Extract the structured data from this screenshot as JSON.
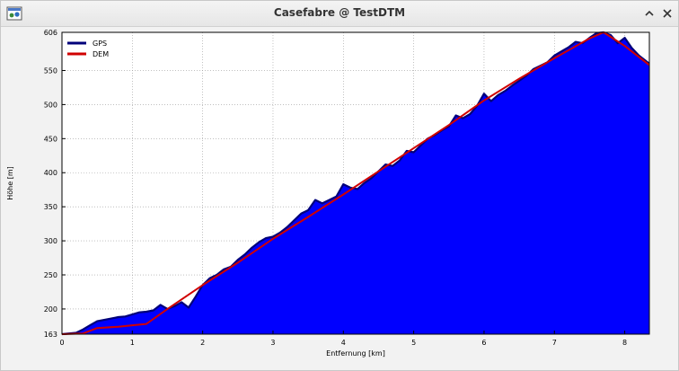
{
  "window": {
    "title": "Casefabre @ TestDTM"
  },
  "colors": {
    "gps_fill": "#0000ff",
    "gps_line": "#00007a",
    "dem_line": "#d00000",
    "grid": "#9a9a9a"
  },
  "chart_data": {
    "type": "area",
    "xlabel": "Entfernung [km]",
    "ylabel": "Höhe [m]",
    "xlim": [
      0,
      8.35
    ],
    "ylim": [
      163,
      606
    ],
    "xticks": [
      "0",
      "1",
      "2",
      "3",
      "4",
      "5",
      "6",
      "7",
      "8"
    ],
    "yticks": [
      "163",
      "200",
      "250",
      "300",
      "350",
      "400",
      "450",
      "500",
      "550",
      "606"
    ],
    "grid": true,
    "legend_position": "top-left",
    "series": [
      {
        "name": "GPS",
        "x": [
          0,
          0.2,
          0.3,
          0.4,
          0.5,
          0.6,
          0.7,
          0.8,
          0.9,
          1.0,
          1.1,
          1.2,
          1.3,
          1.4,
          1.5,
          1.6,
          1.7,
          1.8,
          1.9,
          2.0,
          2.1,
          2.2,
          2.3,
          2.4,
          2.5,
          2.6,
          2.7,
          2.8,
          2.9,
          3.0,
          3.1,
          3.2,
          3.3,
          3.4,
          3.5,
          3.6,
          3.7,
          3.8,
          3.9,
          4.0,
          4.1,
          4.2,
          4.3,
          4.4,
          4.5,
          4.6,
          4.7,
          4.8,
          4.9,
          5.0,
          5.1,
          5.2,
          5.3,
          5.4,
          5.5,
          5.6,
          5.7,
          5.8,
          5.9,
          6.0,
          6.1,
          6.2,
          6.3,
          6.4,
          6.5,
          6.6,
          6.7,
          6.8,
          6.9,
          7.0,
          7.1,
          7.2,
          7.3,
          7.4,
          7.5,
          7.6,
          7.7,
          7.8,
          7.9,
          8.0,
          8.1,
          8.2,
          8.35
        ],
        "values": [
          163,
          165,
          170,
          176,
          182,
          184,
          186,
          188,
          189,
          192,
          195,
          196,
          198,
          206,
          200,
          204,
          210,
          202,
          218,
          235,
          245,
          250,
          258,
          262,
          272,
          280,
          290,
          298,
          304,
          306,
          312,
          320,
          330,
          340,
          345,
          360,
          355,
          360,
          365,
          383,
          378,
          376,
          385,
          392,
          402,
          412,
          410,
          418,
          432,
          430,
          440,
          450,
          455,
          462,
          468,
          484,
          480,
          486,
          498,
          516,
          505,
          514,
          520,
          528,
          535,
          542,
          552,
          557,
          562,
          572,
          578,
          584,
          592,
          590,
          598,
          605,
          606,
          602,
          590,
          598,
          583,
          572,
          560
        ]
      },
      {
        "name": "DEM",
        "x": [
          0,
          0.3,
          0.5,
          0.8,
          1.0,
          1.2,
          1.5,
          2.0,
          2.5,
          3.0,
          3.5,
          4.0,
          4.5,
          5.0,
          5.5,
          6.0,
          6.5,
          7.0,
          7.5,
          7.7,
          8.0,
          8.35
        ],
        "values": [
          163,
          164,
          172,
          174,
          176,
          178,
          200,
          235,
          268,
          303,
          335,
          368,
          402,
          436,
          470,
          506,
          538,
          568,
          597,
          606,
          586,
          558
        ]
      }
    ]
  }
}
